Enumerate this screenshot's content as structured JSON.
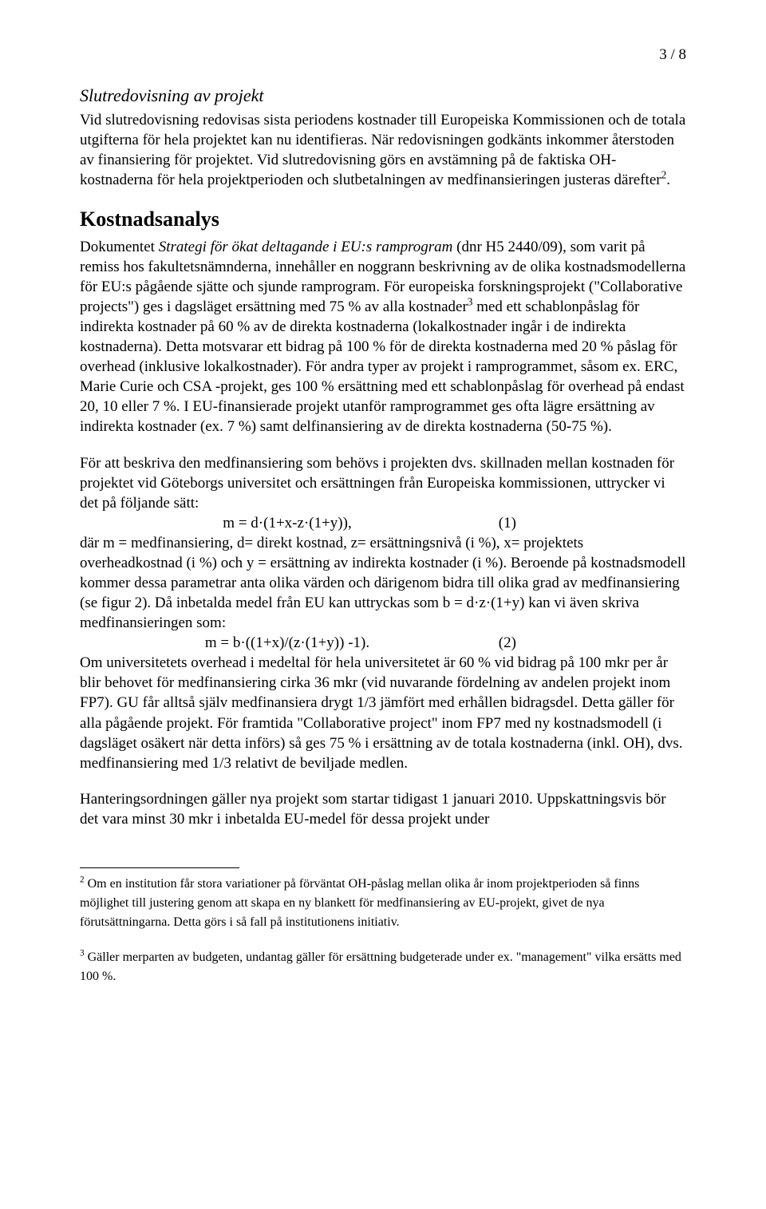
{
  "page_number": "3 / 8",
  "section1": {
    "heading": "Slutredovisning av projekt",
    "para": "Vid slutredovisning redovisas sista periodens kostnader till Europeiska Kommissionen och de totala utgifterna för hela projektet kan nu identifieras. När redovisningen godkänts inkommer återstoden av finansiering för projektet. Vid slutredovisning görs en avstämning på de faktiska OH-kostnaderna för hela projektperioden och slutbetalningen av medfinansieringen justeras därefter",
    "fn_mark": "2",
    "para_tail": "."
  },
  "section2": {
    "heading": "Kostnadsanalys",
    "p1_a": "Dokumentet ",
    "p1_em": "Strategi för ökat deltagande i EU:s ramprogram",
    "p1_b": " (dnr H5 2440/09), som varit på remiss hos fakultetsnämnderna, innehåller en noggrann beskrivning av de olika kostnadsmodellerna för EU:s pågående sjätte och sjunde ramprogram. För europeiska forskningsprojekt (\"Collaborative projects\") ges i dagsläget ersättning med 75 % av alla kostnader",
    "p1_fn": "3",
    "p1_c": " med ett schablonpåslag för indirekta kostnader på 60 % av de direkta kostnaderna (lokalkostnader ingår i de indirekta kostnaderna). Detta motsvarar ett bidrag på 100 % för de direkta kostnaderna med 20 % påslag för overhead (inklusive lokalkostnader). För andra typer av projekt i ramprogrammet, såsom ex. ERC, Marie Curie och CSA -projekt, ges 100 % ersättning med ett schablonpåslag för overhead på endast 20, 10 eller 7 %. I EU-finansierade projekt utanför ramprogrammet ges ofta lägre ersättning av indirekta kostnader (ex. 7 %) samt delfinansiering av de direkta kostnaderna (50-75 %).",
    "p2_a": "För att beskriva den medfinansiering som behövs i projekten dvs. skillnaden mellan kostnaden för projektet vid Göteborgs universitet och ersättningen från Europeiska kommissionen, uttrycker vi det på följande sätt:",
    "eq1": "m = d·(1+x-z·(1+y)),",
    "eq1_num": "(1)",
    "p2_b": "där m = medfinansiering, d= direkt kostnad, z= ersättningsnivå (i %), x= projektets overheadkostnad (i %) och y = ersättning av indirekta kostnader (i %). Beroende på kostnadsmodell kommer dessa parametrar anta olika värden och därigenom bidra till olika grad av medfinansiering (se figur 2). Då inbetalda medel från EU kan uttryckas som b = d·z·(1+y) kan vi även skriva medfinansieringen som:",
    "eq2": "m = b·((1+x)/(z·(1+y)) -1).",
    "eq2_num": "(2)",
    "p2_c": "Om universitetets overhead i medeltal för hela universitetet är 60 % vid bidrag på 100 mkr per år blir behovet för medfinansiering cirka 36 mkr (vid nuvarande fördelning av andelen projekt inom FP7). GU får alltså själv medfinansiera drygt 1/3 jämfört med erhållen bidragsdel. Detta gäller för alla pågående projekt. För framtida \"Collaborative project\" inom FP7 med ny kostnadsmodell (i dagsläget osäkert när detta införs) så ges 75 % i ersättning av de totala kostnaderna (inkl. OH), dvs. medfinansiering med 1/3 relativt de beviljade medlen.",
    "p3": "Hanteringsordningen gäller nya projekt som startar tidigast 1 januari 2010. Uppskattningsvis bör det vara minst 30 mkr i inbetalda EU-medel för dessa projekt under"
  },
  "footnotes": {
    "fn2_mark": "2",
    "fn2_text": " Om en institution får stora variationer på förväntat OH-påslag mellan olika år inom projektperioden så finns möjlighet till justering genom att skapa en ny blankett för medfinansiering av EU-projekt, givet de nya förutsättningarna. Detta görs i så fall på institutionens initiativ.",
    "fn3_mark": "3",
    "fn3_text": " Gäller merparten av budgeten, undantag gäller för ersättning budgeterade under ex. \"management\" vilka ersätts med 100 %."
  }
}
